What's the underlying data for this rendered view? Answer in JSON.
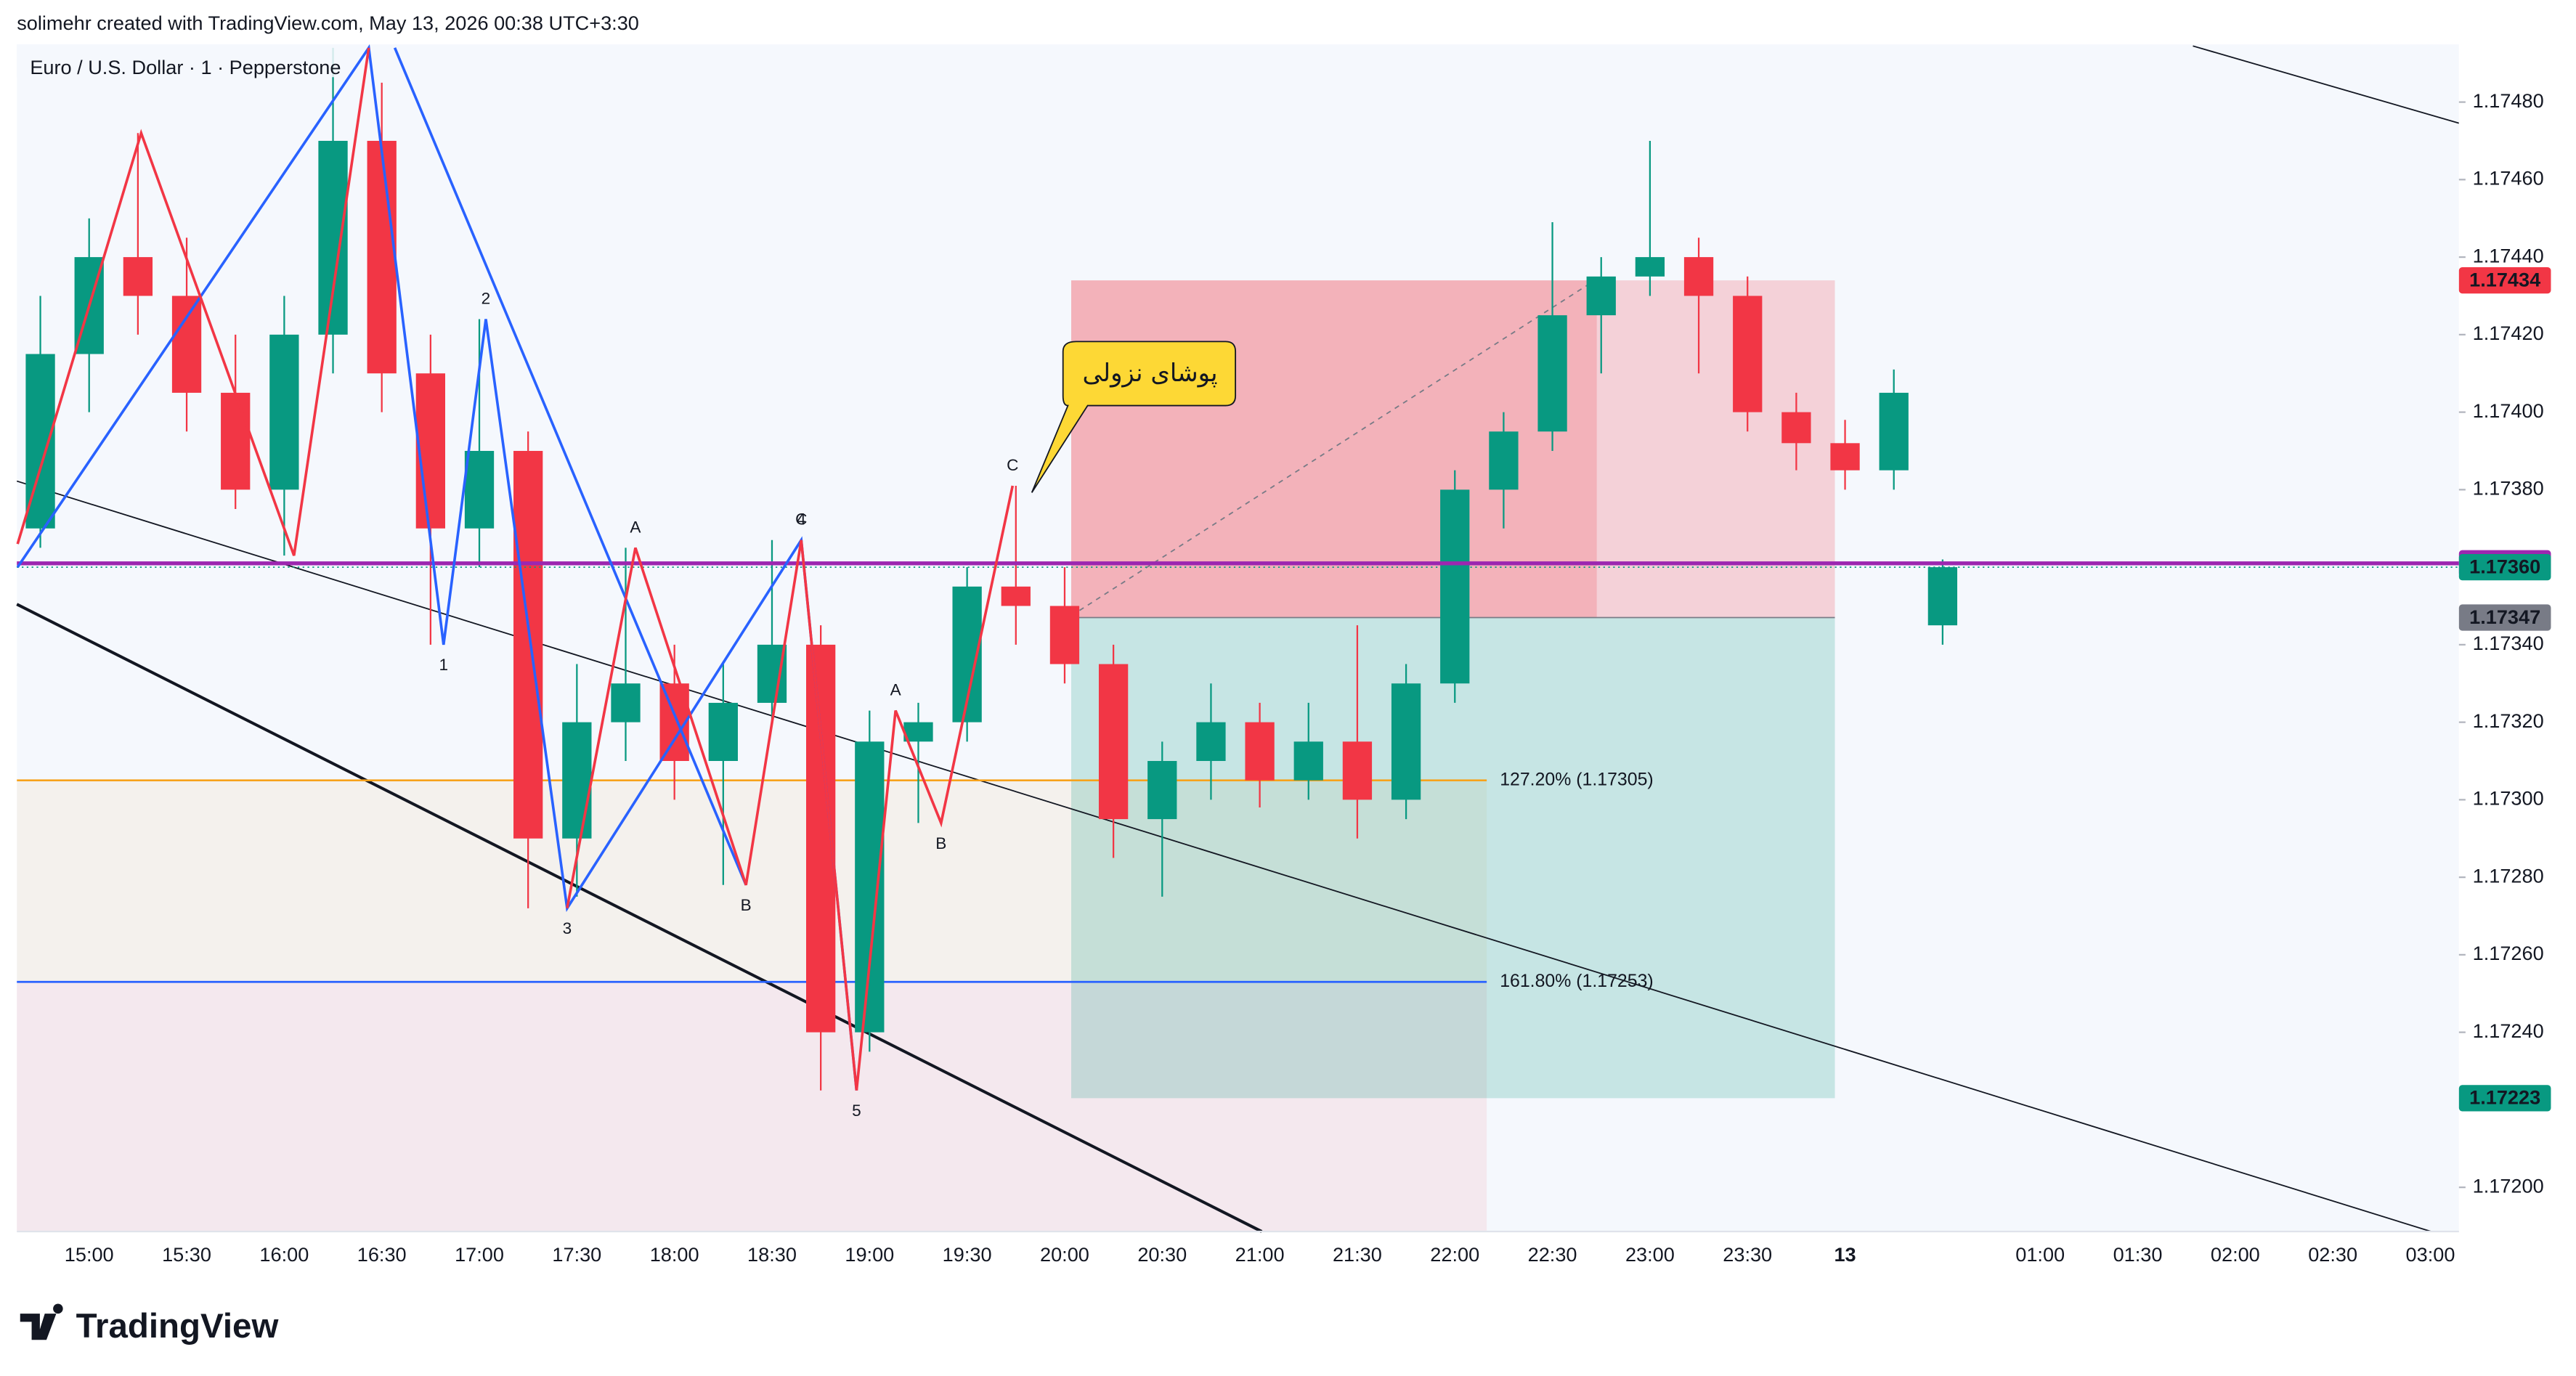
{
  "header": "solimehr created with TradingView.com, May 13, 2026 00:38 UTC+3:30",
  "brand": "TradingView",
  "chart_data": {
    "type": "candlestick",
    "title": "Euro / U.S. Dollar · 1 · Pepperstone",
    "ylim": [
      1.171886,
      1.174949
    ],
    "yticks": [
      {
        "value": 1.172,
        "label": "1.17200"
      },
      {
        "value": 1.1724,
        "label": "1.17240"
      },
      {
        "value": 1.1726,
        "label": "1.17260"
      },
      {
        "value": 1.1728,
        "label": "1.17280"
      },
      {
        "value": 1.173,
        "label": "1.17300"
      },
      {
        "value": 1.1732,
        "label": "1.17320"
      },
      {
        "value": 1.1734,
        "label": "1.17340"
      },
      {
        "value": 1.1738,
        "label": "1.17380"
      },
      {
        "value": 1.174,
        "label": "1.17400"
      },
      {
        "value": 1.1742,
        "label": "1.17420"
      },
      {
        "value": 1.1744,
        "label": "1.17440"
      },
      {
        "value": 1.1746,
        "label": "1.17460"
      },
      {
        "value": 1.1748,
        "label": "1.17480"
      }
    ],
    "xticks": [
      "15:00",
      "15:30",
      "16:00",
      "16:30",
      "17:00",
      "17:30",
      "18:00",
      "18:30",
      "19:00",
      "19:30",
      "20:00",
      "20:30",
      "21:00",
      "21:30",
      "22:00",
      "22:30",
      "23:00",
      "23:30",
      "13",
      null,
      "01:00",
      "01:30",
      "02:00",
      "02:30",
      "03:00"
    ],
    "up_color": "#089981",
    "down_color": "#f23645",
    "candles": {
      "time": [
        "14:45",
        "15:00",
        "15:15",
        "15:30",
        "15:45",
        "16:00",
        "16:15",
        "16:30",
        "16:45",
        "17:00",
        "17:15",
        "17:30",
        "17:45",
        "18:00",
        "18:15",
        "18:30",
        "18:45",
        "19:00",
        "19:15",
        "19:30",
        "19:45",
        "20:00",
        "20:15",
        "20:30",
        "20:45",
        "21:00",
        "21:15",
        "21:30",
        "21:45",
        "22:00",
        "22:15",
        "22:30",
        "22:45",
        "23:00",
        "23:15",
        "23:30",
        "23:45",
        "00:00",
        "00:15",
        "00:30"
      ],
      "open": [
        1.1737,
        1.17415,
        1.1744,
        1.1743,
        1.17405,
        1.1738,
        1.1742,
        1.1747,
        1.1741,
        1.1737,
        1.1739,
        1.1729,
        1.1732,
        1.1733,
        1.1731,
        1.17325,
        1.1734,
        1.1724,
        1.17315,
        1.1732,
        1.17355,
        1.1735,
        1.17335,
        1.17295,
        1.1731,
        1.1732,
        1.17305,
        1.17315,
        1.173,
        1.1733,
        1.1738,
        1.17395,
        1.17425,
        1.17435,
        1.1744,
        1.1743,
        1.174,
        1.17392,
        1.17385,
        1.17345
      ],
      "high": [
        1.1743,
        1.1745,
        1.17472,
        1.17445,
        1.1742,
        1.1743,
        1.17494,
        1.17485,
        1.1742,
        1.17424,
        1.17395,
        1.17335,
        1.17365,
        1.1734,
        1.17335,
        1.17367,
        1.17345,
        1.17323,
        1.17325,
        1.1736,
        1.17381,
        1.1736,
        1.1734,
        1.17315,
        1.1733,
        1.17325,
        1.17325,
        1.17345,
        1.17335,
        1.17385,
        1.174,
        1.17449,
        1.1744,
        1.1747,
        1.17445,
        1.17435,
        1.17405,
        1.17398,
        1.17411,
        1.17362
      ],
      "low": [
        1.17365,
        1.174,
        1.1742,
        1.17395,
        1.17375,
        1.17363,
        1.1741,
        1.174,
        1.1734,
        1.1736,
        1.17272,
        1.17275,
        1.1731,
        1.173,
        1.17278,
        1.1732,
        1.17225,
        1.17235,
        1.17294,
        1.17315,
        1.1734,
        1.1733,
        1.17285,
        1.17275,
        1.173,
        1.17298,
        1.173,
        1.1729,
        1.17295,
        1.17325,
        1.1737,
        1.1739,
        1.1741,
        1.1743,
        1.1741,
        1.17395,
        1.17385,
        1.1738,
        1.1738,
        1.1734
      ],
      "close": [
        1.17415,
        1.1744,
        1.1743,
        1.17405,
        1.1738,
        1.1742,
        1.1747,
        1.1741,
        1.1737,
        1.1739,
        1.1729,
        1.1732,
        1.1733,
        1.1731,
        1.17325,
        1.1734,
        1.1724,
        1.17315,
        1.1732,
        1.17355,
        1.1735,
        1.17335,
        1.17295,
        1.1731,
        1.1732,
        1.17305,
        1.17315,
        1.173,
        1.1733,
        1.1738,
        1.17395,
        1.17425,
        1.17435,
        1.1744,
        1.1743,
        1.174,
        1.17392,
        1.17385,
        1.17405,
        1.1736
      ]
    },
    "position": {
      "stop": 1.17434,
      "entry": 1.17347,
      "target": 1.17223
    },
    "alert_line": {
      "value": 1.17361,
      "color": "#9c27b0"
    },
    "last_price": {
      "value": 1.1736,
      "label": "1.17360",
      "color": "#089981"
    },
    "levels": [
      {
        "label": "127.20% (1.17305)",
        "value": 1.17305,
        "color": "#f7a21b"
      },
      {
        "label": "161.80% (1.17253)",
        "value": 1.17253,
        "color": "#2962ff"
      }
    ],
    "patterns": [
      {
        "color": "#2962ff",
        "points": [
          {
            "time": "14:38",
            "price": 1.1736
          },
          {
            "time": "16:26",
            "price": 1.17494
          },
          {
            "time": "16:49",
            "price": 1.1734,
            "label": "1"
          },
          {
            "time": "17:02",
            "price": 1.17424,
            "label": "2"
          },
          {
            "time": "17:27",
            "price": 1.17272,
            "label": "3"
          },
          {
            "time": "18:39",
            "price": 1.17367,
            "label": "4"
          },
          {
            "time": "18:56",
            "price": 1.17225,
            "label": "5"
          }
        ]
      },
      {
        "color": "#2962ff",
        "points": [
          {
            "time": "16:34",
            "price": 1.17494
          },
          {
            "time": "18:22",
            "price": 1.17278
          }
        ]
      },
      {
        "color": "#f23645",
        "points": [
          {
            "time": "14:38",
            "price": 1.17366
          },
          {
            "time": "15:16",
            "price": 1.17472
          },
          {
            "time": "16:03",
            "price": 1.17363
          },
          {
            "time": "16:26",
            "price": 1.17494
          }
        ]
      },
      {
        "color": "#f23645",
        "points": [
          {
            "time": "17:27",
            "price": 1.17272
          },
          {
            "time": "17:48",
            "price": 1.17365,
            "label": "A"
          },
          {
            "time": "18:22",
            "price": 1.17278,
            "label": "B"
          },
          {
            "time": "18:39",
            "price": 1.17367,
            "label": "C"
          },
          {
            "time": "18:56",
            "price": 1.17225
          }
        ]
      },
      {
        "color": "#f23645",
        "points": [
          {
            "time": "18:56",
            "price": 1.17225
          },
          {
            "time": "19:08",
            "price": 1.17323,
            "label": "A"
          },
          {
            "time": "19:22",
            "price": 1.17294,
            "label": "B"
          },
          {
            "time": "19:44",
            "price": 1.17381,
            "label": "C"
          }
        ]
      }
    ],
    "callout": "پوشای نزولی"
  }
}
